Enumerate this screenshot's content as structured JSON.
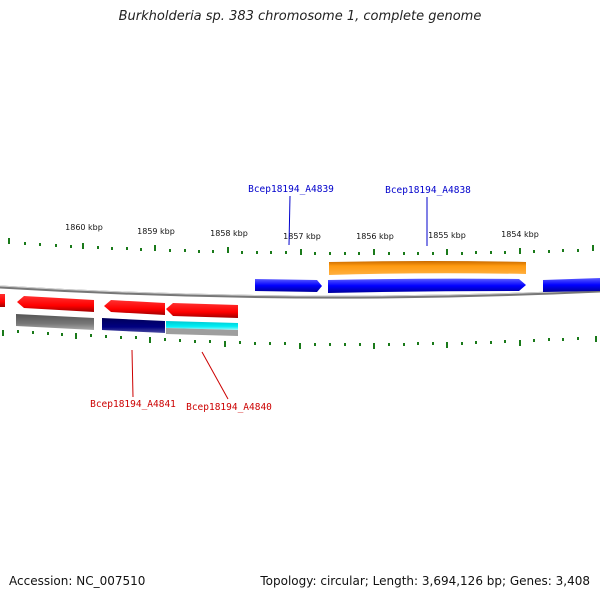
{
  "title": "Burkholderia sp. 383 chromosome 1, complete genome",
  "footer": {
    "accession": "Accession: NC_007510",
    "summary": "Topology: circular; Length: 3,694,126 bp; Genes: 3,408"
  },
  "colors": {
    "forward_cds": "#0000ff",
    "forward_other": "#ff8c00",
    "reverse_cds": "#ff0000",
    "reverse_gray": "#707070",
    "reverse_navy": "#000080",
    "reverse_cyan": "#00e5ee",
    "ticks": "#006400",
    "backbone": "#808080",
    "label_forward": "#0000cc",
    "label_reverse": "#cc0000"
  },
  "ticks": [
    {
      "label": "1860 kbp"
    },
    {
      "label": "1859 kbp"
    },
    {
      "label": "1858 kbp"
    },
    {
      "label": "1857 kbp"
    },
    {
      "label": "1856 kbp"
    },
    {
      "label": "1855 kbp"
    },
    {
      "label": "1854 kbp"
    }
  ],
  "gene_labels": [
    {
      "name": "Bcep18194_A4839",
      "strand": "forward"
    },
    {
      "name": "Bcep18194_A4838",
      "strand": "forward"
    },
    {
      "name": "Bcep18194_A4841",
      "strand": "reverse"
    },
    {
      "name": "Bcep18194_A4840",
      "strand": "reverse"
    }
  ]
}
